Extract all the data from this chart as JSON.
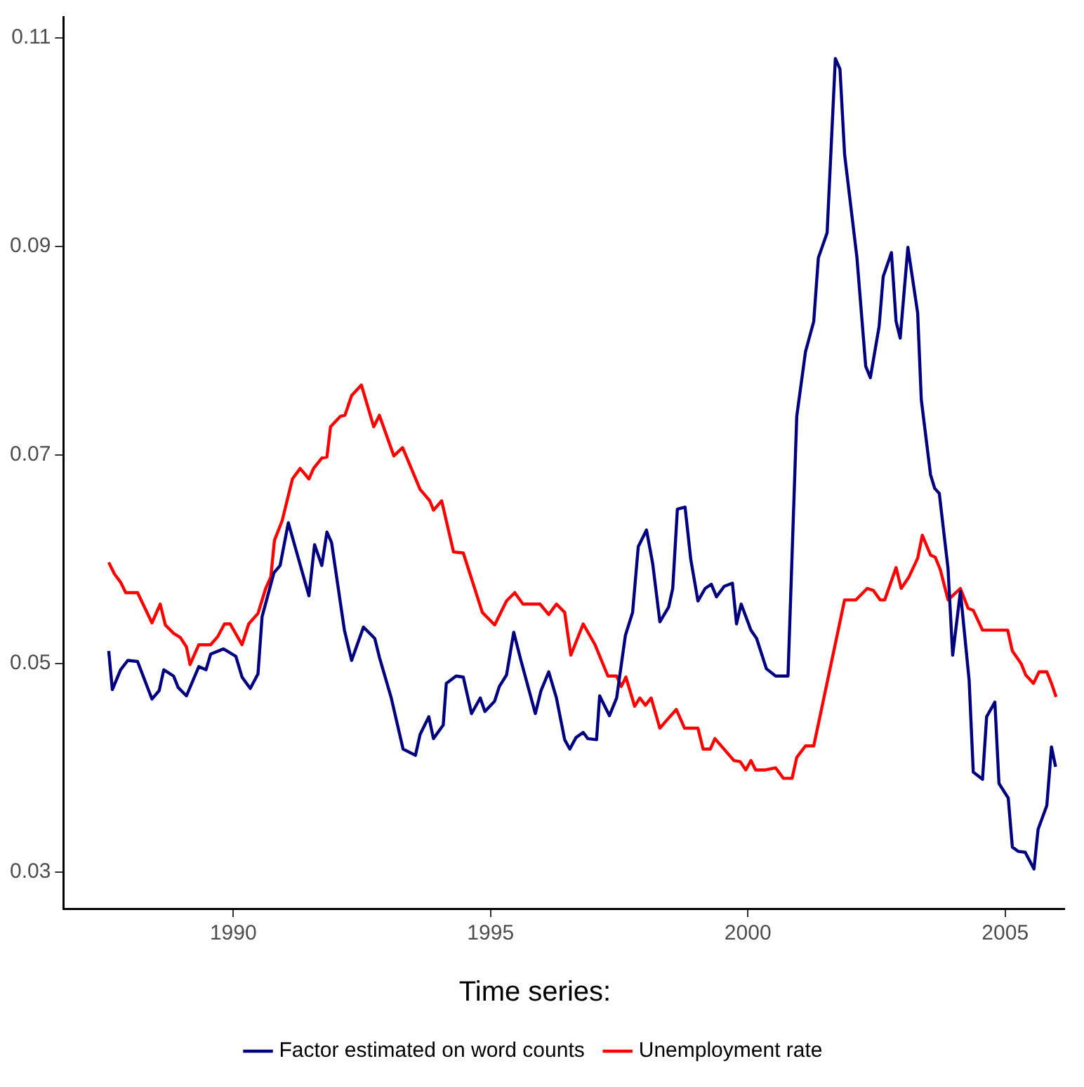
{
  "chart_data": {
    "type": "line",
    "legend_title": "Time series:",
    "xlim": [
      1986.7,
      2006.15
    ],
    "xticks": [
      1990,
      1995,
      2000,
      2005
    ],
    "ylim": [
      0.0265,
      0.112
    ],
    "yticks": [
      0.03,
      0.05,
      0.07,
      0.09,
      0.11
    ],
    "grid": false,
    "legend": "bottom",
    "marker": "none",
    "series": [
      {
        "name": "Factor estimated on word counts",
        "color": "#000080",
        "x": [
          1987.58,
          1987.65,
          1987.81,
          1987.95,
          1988.14,
          1988.42,
          1988.56,
          1988.65,
          1988.84,
          1988.93,
          1989.09,
          1989.33,
          1989.47,
          1989.56,
          1989.81,
          1990.05,
          1990.17,
          1990.33,
          1990.48,
          1990.56,
          1990.79,
          1990.91,
          1991.07,
          1991.23,
          1991.47,
          1991.58,
          1991.72,
          1991.82,
          1991.91,
          1992.16,
          1992.3,
          1992.53,
          1992.75,
          1992.84,
          1993.07,
          1993.3,
          1993.54,
          1993.63,
          1993.8,
          1993.89,
          1994.08,
          1994.14,
          1994.33,
          1994.47,
          1994.63,
          1994.8,
          1994.89,
          1995.08,
          1995.17,
          1995.31,
          1995.45,
          1995.59,
          1995.87,
          1995.98,
          1996.13,
          1996.28,
          1996.44,
          1996.54,
          1996.66,
          1996.8,
          1996.89,
          1997.06,
          1997.12,
          1997.31,
          1997.45,
          1997.62,
          1997.76,
          1997.87,
          1998.03,
          1998.15,
          1998.29,
          1998.46,
          1998.54,
          1998.63,
          1998.78,
          1998.89,
          1999.03,
          1999.17,
          1999.29,
          1999.39,
          1999.54,
          1999.7,
          1999.78,
          1999.87,
          2000.06,
          2000.17,
          2000.36,
          2000.54,
          2000.78,
          2000.95,
          2001.12,
          2001.28,
          2001.37,
          2001.54,
          2001.7,
          2001.79,
          2001.88,
          2002.12,
          2002.29,
          2002.38,
          2002.55,
          2002.63,
          2002.79,
          2002.88,
          2002.96,
          2003.11,
          2003.3,
          2003.37,
          2003.55,
          2003.63,
          2003.72,
          2003.89,
          2003.98,
          2004.13,
          2004.3,
          2004.38,
          2004.56,
          2004.64,
          2004.8,
          2004.88,
          2005.06,
          2005.14,
          2005.25,
          2005.39,
          2005.56,
          2005.64,
          2005.81,
          2005.9,
          2005.98
        ],
        "values": [
          0.0512,
          0.0475,
          0.0494,
          0.0503,
          0.0502,
          0.0466,
          0.0474,
          0.0494,
          0.0488,
          0.0477,
          0.0469,
          0.0497,
          0.0494,
          0.0509,
          0.0514,
          0.0507,
          0.0487,
          0.0476,
          0.049,
          0.0545,
          0.0587,
          0.0594,
          0.0635,
          0.0607,
          0.0565,
          0.0614,
          0.0594,
          0.0626,
          0.0616,
          0.0532,
          0.0503,
          0.0535,
          0.0524,
          0.0506,
          0.0467,
          0.0418,
          0.0412,
          0.0432,
          0.0449,
          0.0428,
          0.0441,
          0.0481,
          0.0488,
          0.0487,
          0.0452,
          0.0467,
          0.0454,
          0.0464,
          0.0478,
          0.0489,
          0.053,
          0.0503,
          0.0452,
          0.0474,
          0.0492,
          0.0467,
          0.0427,
          0.0418,
          0.0429,
          0.0434,
          0.0428,
          0.0427,
          0.0469,
          0.045,
          0.0467,
          0.0527,
          0.0549,
          0.0612,
          0.0628,
          0.0596,
          0.054,
          0.0554,
          0.0572,
          0.0648,
          0.065,
          0.06,
          0.056,
          0.0572,
          0.0576,
          0.0564,
          0.0574,
          0.0577,
          0.0538,
          0.0557,
          0.0532,
          0.0524,
          0.0495,
          0.0488,
          0.0488,
          0.0737,
          0.0799,
          0.0828,
          0.0889,
          0.0913,
          0.108,
          0.107,
          0.0988,
          0.0889,
          0.0785,
          0.0774,
          0.0823,
          0.0871,
          0.0894,
          0.0828,
          0.0812,
          0.0899,
          0.0836,
          0.0753,
          0.0681,
          0.0668,
          0.0663,
          0.0591,
          0.0508,
          0.0569,
          0.0484,
          0.0396,
          0.0389,
          0.0449,
          0.0463,
          0.0385,
          0.0371,
          0.0324,
          0.032,
          0.0319,
          0.0303,
          0.0341,
          0.0364,
          0.042,
          0.0401
        ]
      },
      {
        "name": "Unemployment rate",
        "color": "#ff0000",
        "x": [
          1987.58,
          1987.69,
          1987.81,
          1987.91,
          1988.14,
          1988.42,
          1988.58,
          1988.68,
          1988.84,
          1988.97,
          1989.09,
          1989.16,
          1989.33,
          1989.56,
          1989.7,
          1989.83,
          1989.94,
          1990.17,
          1990.3,
          1990.48,
          1990.63,
          1990.73,
          1990.8,
          1990.95,
          1991.15,
          1991.3,
          1991.47,
          1991.56,
          1991.72,
          1991.82,
          1991.89,
          1992.08,
          1992.17,
          1992.3,
          1992.49,
          1992.73,
          1992.84,
          1993.12,
          1993.29,
          1993.63,
          1993.82,
          1993.89,
          1994.05,
          1994.28,
          1994.47,
          1994.84,
          1995.08,
          1995.31,
          1995.47,
          1995.63,
          1995.96,
          1996.13,
          1996.28,
          1996.44,
          1996.56,
          1996.8,
          1997.03,
          1997.28,
          1997.45,
          1997.54,
          1997.63,
          1997.8,
          1997.9,
          1998.01,
          1998.12,
          1998.29,
          1998.43,
          1998.61,
          1998.77,
          1999.03,
          1999.13,
          1999.27,
          1999.36,
          1999.73,
          1999.85,
          1999.96,
          2000.06,
          2000.15,
          2000.34,
          2000.54,
          2000.69,
          2000.86,
          2000.95,
          2001.12,
          2001.28,
          2001.88,
          2002.1,
          2002.32,
          2002.44,
          2002.57,
          2002.66,
          2002.88,
          2002.98,
          2003.13,
          2003.3,
          2003.39,
          2003.55,
          2003.64,
          2003.74,
          2003.89,
          2004.13,
          2004.28,
          2004.38,
          2004.56,
          2005.05,
          2005.14,
          2005.31,
          2005.4,
          2005.55,
          2005.66,
          2005.81,
          2005.9,
          2005.99
        ],
        "values": [
          0.0597,
          0.0586,
          0.0578,
          0.0568,
          0.0568,
          0.0539,
          0.0557,
          0.0537,
          0.0529,
          0.0525,
          0.0516,
          0.0499,
          0.0518,
          0.0518,
          0.0526,
          0.0538,
          0.0538,
          0.0518,
          0.0538,
          0.0548,
          0.0572,
          0.0583,
          0.0618,
          0.0637,
          0.0677,
          0.0687,
          0.0677,
          0.0687,
          0.0697,
          0.0698,
          0.0727,
          0.0737,
          0.0738,
          0.0757,
          0.0767,
          0.0727,
          0.0738,
          0.0699,
          0.0707,
          0.0667,
          0.0656,
          0.0647,
          0.0656,
          0.0607,
          0.0606,
          0.0549,
          0.0537,
          0.056,
          0.0568,
          0.0557,
          0.0557,
          0.0547,
          0.0557,
          0.0549,
          0.0508,
          0.0538,
          0.0518,
          0.0488,
          0.0488,
          0.0478,
          0.0487,
          0.0459,
          0.0467,
          0.046,
          0.0467,
          0.0438,
          0.0446,
          0.0456,
          0.0438,
          0.0438,
          0.0418,
          0.0418,
          0.0428,
          0.0407,
          0.0406,
          0.0398,
          0.0407,
          0.0398,
          0.0398,
          0.04,
          0.039,
          0.039,
          0.041,
          0.0421,
          0.0421,
          0.0561,
          0.0561,
          0.0572,
          0.057,
          0.0561,
          0.0561,
          0.0592,
          0.0572,
          0.0583,
          0.0601,
          0.0623,
          0.0604,
          0.0602,
          0.059,
          0.0561,
          0.0572,
          0.0553,
          0.0551,
          0.0532,
          0.0532,
          0.0512,
          0.05,
          0.0489,
          0.0481,
          0.0492,
          0.0492,
          0.0481,
          0.0468
        ]
      }
    ]
  }
}
